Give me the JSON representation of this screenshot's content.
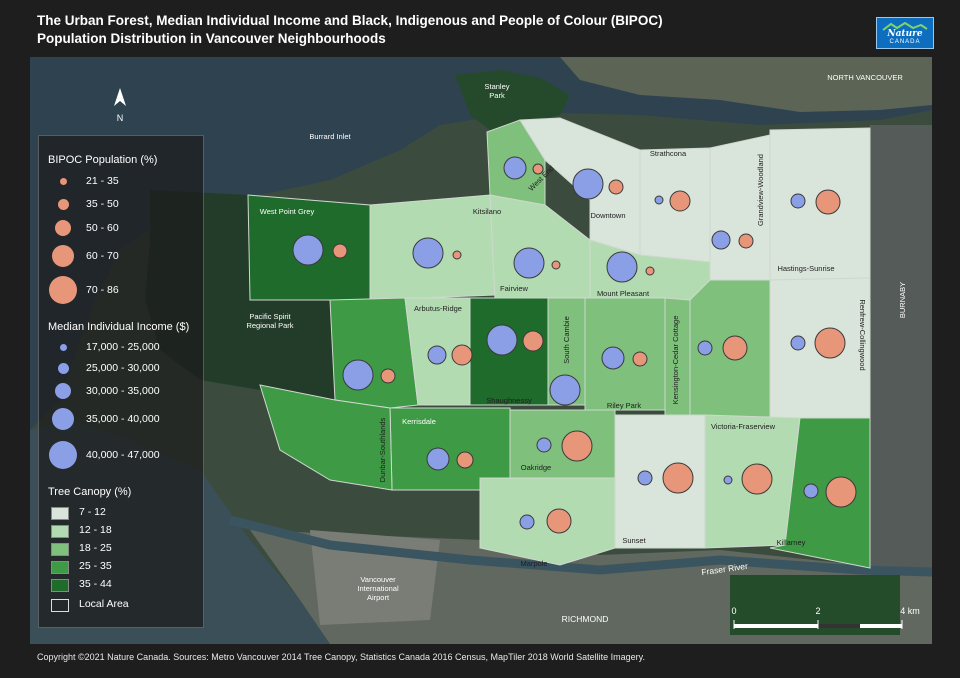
{
  "title": {
    "line1": "The Urban Forest, Median Individual Income and Black, Indigenous and People of Colour (BIPOC)",
    "line2": "Population Distribution in Vancouver Neighbourhoods"
  },
  "logo": {
    "line1": "Nature",
    "line2": "CANADA"
  },
  "north_label": "N",
  "legend": {
    "bipoc_title": "BIPOC Population (%)",
    "bipoc": [
      "21 - 35",
      "35 - 50",
      "50 - 60",
      "60 - 70",
      "70 - 86"
    ],
    "income_title": "Median Individual Income ($)",
    "income": [
      "17,000 - 25,000",
      "25,000 - 30,000",
      "30,000 - 35,000",
      "35,000 - 40,000",
      "40,000 - 47,000"
    ],
    "canopy_title": "Tree Canopy (%)",
    "canopy": [
      "7 - 12",
      "12 - 18",
      "18 - 25",
      "25 - 35",
      "35 - 44"
    ],
    "local_area": "Local Area"
  },
  "colors": {
    "bipoc": "#e8967a",
    "income": "#8a9fe6",
    "canopy": [
      "#d9e4da",
      "#b3dbb2",
      "#7ec07c",
      "#3e9a45",
      "#1f6b2c"
    ]
  },
  "place_labels": {
    "stanley": "Stanley",
    "park": "Park",
    "burrard": "Burrard Inlet",
    "north_vancouver": "NORTH VANCOUVER",
    "pacific_spirit_1": "Pacific Spirit",
    "pacific_spirit_2": "Regional Park",
    "burnaby": "BURNABY",
    "fraser": "Fraser River",
    "airport_1": "Vancouver",
    "airport_2": "International",
    "airport_3": "Airport",
    "richmond": "RICHMOND"
  },
  "neighbourhoods": {
    "strathcona": "Strathcona",
    "west_end": "West End",
    "downtown": "Downtown",
    "grandview": "Grandview-Woodland",
    "kitsilano": "Kitsilano",
    "west_point_grey": "West Point Grey",
    "fairview": "Fairview",
    "mount_pleasant": "Mount Pleasant",
    "hastings": "Hastings-Sunrise",
    "renfrew": "Renfrew-Collingwood",
    "arbutus": "Arbutus-Ridge",
    "south_cambie": "South Cambie",
    "kensington": "Kensington-Cedar Cottage",
    "shaughnessy": "Shaughnessy",
    "riley_park": "Riley Park",
    "kerrisdale": "Kerrisdale",
    "dunbar": "Dunbar-Southlands",
    "victoria": "Victoria-Fraserview",
    "oakridge": "Oakridge",
    "killarney": "Killarney",
    "sunset": "Sunset",
    "marpole": "Marpole"
  },
  "scale": {
    "l0": "0",
    "l2": "2",
    "l4": "4 km"
  },
  "footer": "Copyright ©2021 Nature Canada. Sources: Metro Vancouver 2014 Tree Canopy, Statistics Canada 2016 Census, MapTiler 2018 World Satellite Imagery."
}
